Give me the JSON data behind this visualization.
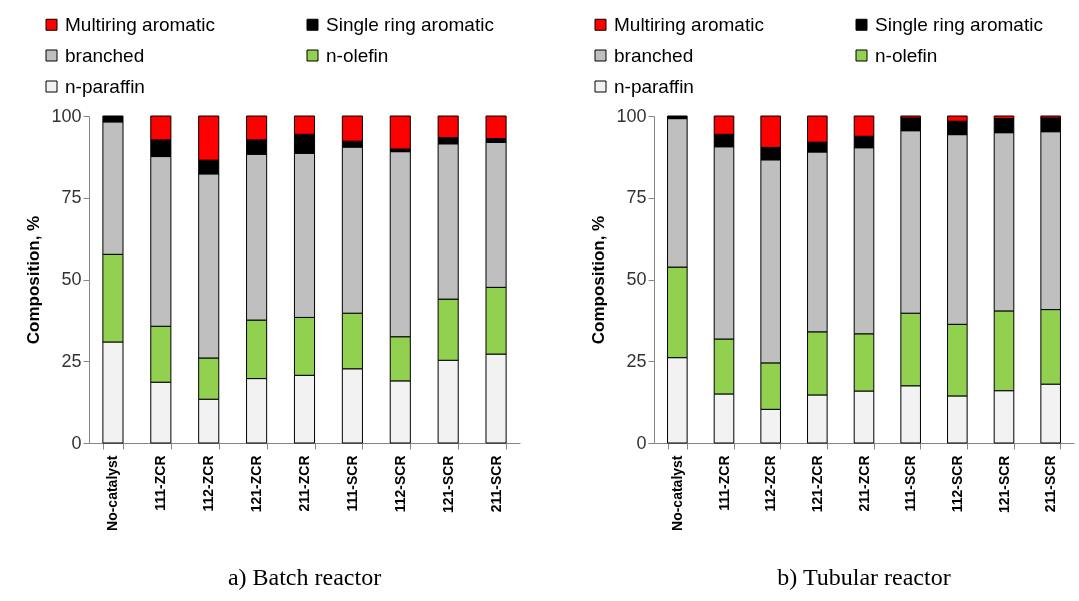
{
  "chart_data": [
    {
      "type": "bar",
      "title": "a) Batch reactor",
      "ylabel": "Composition, %",
      "stacked": true,
      "legend": "top",
      "grid": false,
      "ylim": [
        0,
        100
      ],
      "yticks": [
        0,
        25,
        50,
        75,
        100
      ],
      "categories": [
        "No-catalyst",
        "111-ZCR",
        "112-ZCR",
        "121-ZCR",
        "211-ZCR",
        "111-SCR",
        "112-SCR",
        "121-SCR",
        "211-SCR"
      ],
      "series": [
        {
          "name": "n-paraffin",
          "color": "#f2f2f2",
          "values": [
            30.9,
            18.6,
            13.4,
            19.7,
            20.7,
            22.7,
            19.0,
            25.3,
            27.2
          ]
        },
        {
          "name": "n-olefin",
          "color": "#92d050",
          "values": [
            26.8,
            17.1,
            12.6,
            17.9,
            17.7,
            17.0,
            13.5,
            18.7,
            20.4
          ]
        },
        {
          "name": "branched",
          "color": "#bfbfbf",
          "values": [
            40.5,
            51.9,
            56.3,
            50.7,
            50.2,
            50.8,
            56.6,
            47.5,
            44.3
          ]
        },
        {
          "name": "Single ring aromatic",
          "color": "#000000",
          "values": [
            1.8,
            5.1,
            4.2,
            4.4,
            5.8,
            1.8,
            0.8,
            1.9,
            1.2
          ]
        },
        {
          "name": "Multiring aromatic",
          "color": "#ff0000",
          "values": [
            null,
            7.3,
            13.5,
            7.3,
            5.6,
            7.7,
            10.1,
            6.6,
            6.9
          ]
        }
      ]
    },
    {
      "type": "bar",
      "title": "b) Tubular reactor",
      "ylabel": "Composition, %",
      "stacked": true,
      "legend": "top",
      "grid": false,
      "ylim": [
        0,
        100
      ],
      "yticks": [
        0,
        25,
        50,
        75,
        100
      ],
      "categories": [
        "No-catalyst",
        "111-ZCR",
        "112-ZCR",
        "121-ZCR",
        "211-ZCR",
        "111-SCR",
        "112-SCR",
        "121-SCR",
        "211-SCR"
      ],
      "series": [
        {
          "name": "n-paraffin",
          "color": "#f2f2f2",
          "values": [
            26.1,
            15.0,
            10.3,
            14.7,
            15.9,
            17.5,
            14.4,
            16.0,
            18.0
          ]
        },
        {
          "name": "n-olefin",
          "color": "#92d050",
          "values": [
            27.7,
            16.8,
            14.2,
            19.3,
            17.5,
            22.2,
            21.9,
            24.4,
            22.8
          ]
        },
        {
          "name": "branched",
          "color": "#bfbfbf",
          "values": [
            45.4,
            58.8,
            62.1,
            55.0,
            56.9,
            55.8,
            58.0,
            54.5,
            54.4
          ]
        },
        {
          "name": "Single ring aromatic",
          "color": "#000000",
          "values": [
            0.8,
            3.8,
            3.8,
            3.0,
            3.5,
            3.9,
            4.1,
            4.3,
            4.2
          ]
        },
        {
          "name": "Multiring aromatic",
          "color": "#ff0000",
          "values": [
            null,
            5.6,
            9.6,
            8.0,
            6.2,
            0.6,
            1.6,
            0.8,
            0.6
          ]
        }
      ]
    }
  ]
}
